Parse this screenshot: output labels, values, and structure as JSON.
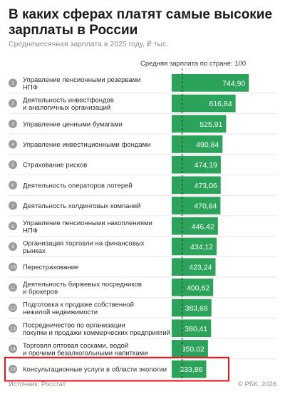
{
  "header": {
    "title": "В каких сферах платят самые высокие зарплаты в России",
    "subtitle": "Среднемесячная зарплата в 2025 году, ₽ тыс."
  },
  "reference_line_label": "Средняя зарплата по стране: 100",
  "footer": {
    "source": "Источник: Росстат",
    "copyright": "© РБК, 2026"
  },
  "colors": {
    "bar": "#2ca35a",
    "rank_circle": "#9a9a9a",
    "highlight": "#e3131b",
    "reference_line": "#1b1b1b"
  },
  "chart_data": {
    "type": "bar",
    "orientation": "horizontal",
    "title": "В каких сферах платят самые высокие зарплаты в России",
    "subtitle": "Среднемесячная зарплата в 2025 году, ₽ тыс.",
    "reference_line": {
      "value": 100,
      "label": "Средняя зарплата по стране: 100"
    },
    "highlighted_rank": 15,
    "ranks": [
      1,
      2,
      3,
      4,
      5,
      6,
      7,
      8,
      9,
      10,
      11,
      12,
      13,
      14,
      15
    ],
    "categories": [
      [
        "Управление пенсионными резервами",
        "НПФ"
      ],
      [
        "Деятельность инвестфондов",
        "и аналогичных организаций"
      ],
      [
        "Управление ценными бумагами"
      ],
      [
        "Управление инвестиционными фондами"
      ],
      [
        "Страхование рисков"
      ],
      [
        "Деятельность операторов лотерей"
      ],
      [
        "Деятельность холдинговых компаний"
      ],
      [
        "Управление пенсионными накоплениями",
        "НПФ"
      ],
      [
        "Организация торговли на финансовых",
        "рынках"
      ],
      [
        "Перестрахование"
      ],
      [
        "Деятельность биржевых посредников",
        "и брокеров"
      ],
      [
        "Подготовка к продаже собственной",
        "нежилой недвижимости"
      ],
      [
        "Посредничество по организации",
        "покупки и продажи коммерческих предприятий"
      ],
      [
        "Торговля оптовая сосками, водой",
        "и прочими безалкогольными напитками"
      ],
      [
        "Консультационные услуги в области экологии"
      ]
    ],
    "values": [
      744.9,
      616.84,
      525.91,
      490.84,
      474.19,
      473.06,
      470.84,
      446.42,
      434.12,
      423.24,
      400.62,
      383.68,
      380.41,
      350.02,
      333.86
    ],
    "value_labels": [
      "744,90",
      "616,84",
      "525,91",
      "490,84",
      "474,19",
      "473,06",
      "470,84",
      "446,42",
      "434,12",
      "423,24",
      "400,62",
      "383,68",
      "380,41",
      "350,02",
      "333,86"
    ]
  }
}
